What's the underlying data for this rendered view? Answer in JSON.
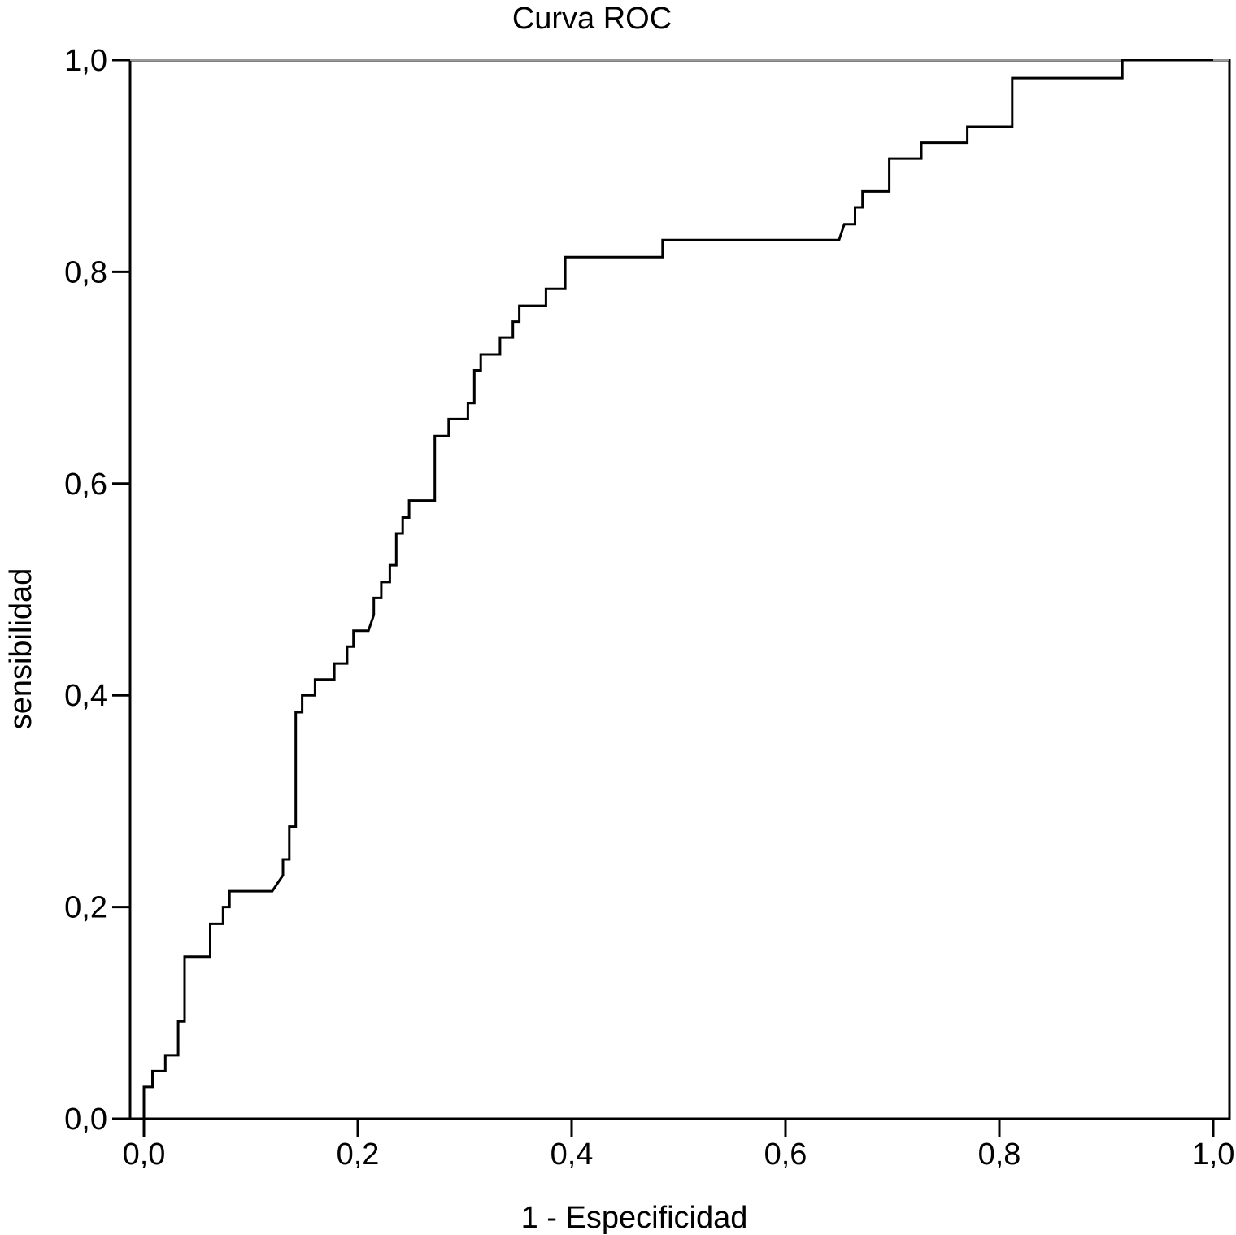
{
  "chart_data": {
    "type": "line",
    "title": "Curva ROC",
    "xlabel": "1 - Especificidad",
    "ylabel": "sensibilidad",
    "xlim": [
      0,
      1
    ],
    "ylim": [
      0,
      1
    ],
    "xticks": [
      "0,0",
      "0,2",
      "0,4",
      "0,6",
      "0,8",
      "1,0"
    ],
    "yticks": [
      "0,0",
      "0,2",
      "0,4",
      "0,6",
      "0,8",
      "1,0"
    ],
    "grid": false,
    "legend": "none",
    "line_color": "#000000",
    "series": [
      {
        "points": [
          [
            0.0,
            0.0
          ],
          [
            0.0,
            0.03
          ],
          [
            0.008,
            0.03
          ],
          [
            0.008,
            0.045
          ],
          [
            0.02,
            0.045
          ],
          [
            0.02,
            0.06
          ],
          [
            0.032,
            0.06
          ],
          [
            0.032,
            0.092
          ],
          [
            0.038,
            0.092
          ],
          [
            0.038,
            0.153
          ],
          [
            0.062,
            0.153
          ],
          [
            0.062,
            0.184
          ],
          [
            0.074,
            0.184
          ],
          [
            0.074,
            0.2
          ],
          [
            0.08,
            0.2
          ],
          [
            0.08,
            0.215
          ],
          [
            0.12,
            0.215
          ],
          [
            0.13,
            0.23
          ],
          [
            0.13,
            0.245
          ],
          [
            0.136,
            0.245
          ],
          [
            0.136,
            0.276
          ],
          [
            0.142,
            0.276
          ],
          [
            0.142,
            0.384
          ],
          [
            0.148,
            0.384
          ],
          [
            0.148,
            0.4
          ],
          [
            0.16,
            0.4
          ],
          [
            0.16,
            0.415
          ],
          [
            0.178,
            0.415
          ],
          [
            0.178,
            0.43
          ],
          [
            0.19,
            0.43
          ],
          [
            0.19,
            0.446
          ],
          [
            0.196,
            0.446
          ],
          [
            0.196,
            0.461
          ],
          [
            0.21,
            0.461
          ],
          [
            0.215,
            0.476
          ],
          [
            0.215,
            0.492
          ],
          [
            0.222,
            0.492
          ],
          [
            0.222,
            0.507
          ],
          [
            0.23,
            0.507
          ],
          [
            0.23,
            0.523
          ],
          [
            0.236,
            0.523
          ],
          [
            0.236,
            0.553
          ],
          [
            0.242,
            0.553
          ],
          [
            0.242,
            0.568
          ],
          [
            0.248,
            0.568
          ],
          [
            0.248,
            0.584
          ],
          [
            0.272,
            0.584
          ],
          [
            0.272,
            0.645
          ],
          [
            0.285,
            0.645
          ],
          [
            0.285,
            0.661
          ],
          [
            0.303,
            0.661
          ],
          [
            0.303,
            0.676
          ],
          [
            0.309,
            0.676
          ],
          [
            0.309,
            0.707
          ],
          [
            0.315,
            0.707
          ],
          [
            0.315,
            0.722
          ],
          [
            0.333,
            0.722
          ],
          [
            0.333,
            0.738
          ],
          [
            0.345,
            0.738
          ],
          [
            0.345,
            0.753
          ],
          [
            0.351,
            0.753
          ],
          [
            0.351,
            0.768
          ],
          [
            0.376,
            0.768
          ],
          [
            0.376,
            0.784
          ],
          [
            0.394,
            0.784
          ],
          [
            0.394,
            0.814
          ],
          [
            0.485,
            0.814
          ],
          [
            0.485,
            0.83
          ],
          [
            0.65,
            0.83
          ],
          [
            0.655,
            0.845
          ],
          [
            0.665,
            0.845
          ],
          [
            0.665,
            0.861
          ],
          [
            0.672,
            0.861
          ],
          [
            0.672,
            0.876
          ],
          [
            0.697,
            0.876
          ],
          [
            0.697,
            0.907
          ],
          [
            0.727,
            0.907
          ],
          [
            0.727,
            0.922
          ],
          [
            0.77,
            0.922
          ],
          [
            0.77,
            0.937
          ],
          [
            0.812,
            0.937
          ],
          [
            0.812,
            0.983
          ],
          [
            0.915,
            0.983
          ],
          [
            0.915,
            1.0
          ],
          [
            1.0,
            1.0
          ]
        ]
      }
    ]
  }
}
